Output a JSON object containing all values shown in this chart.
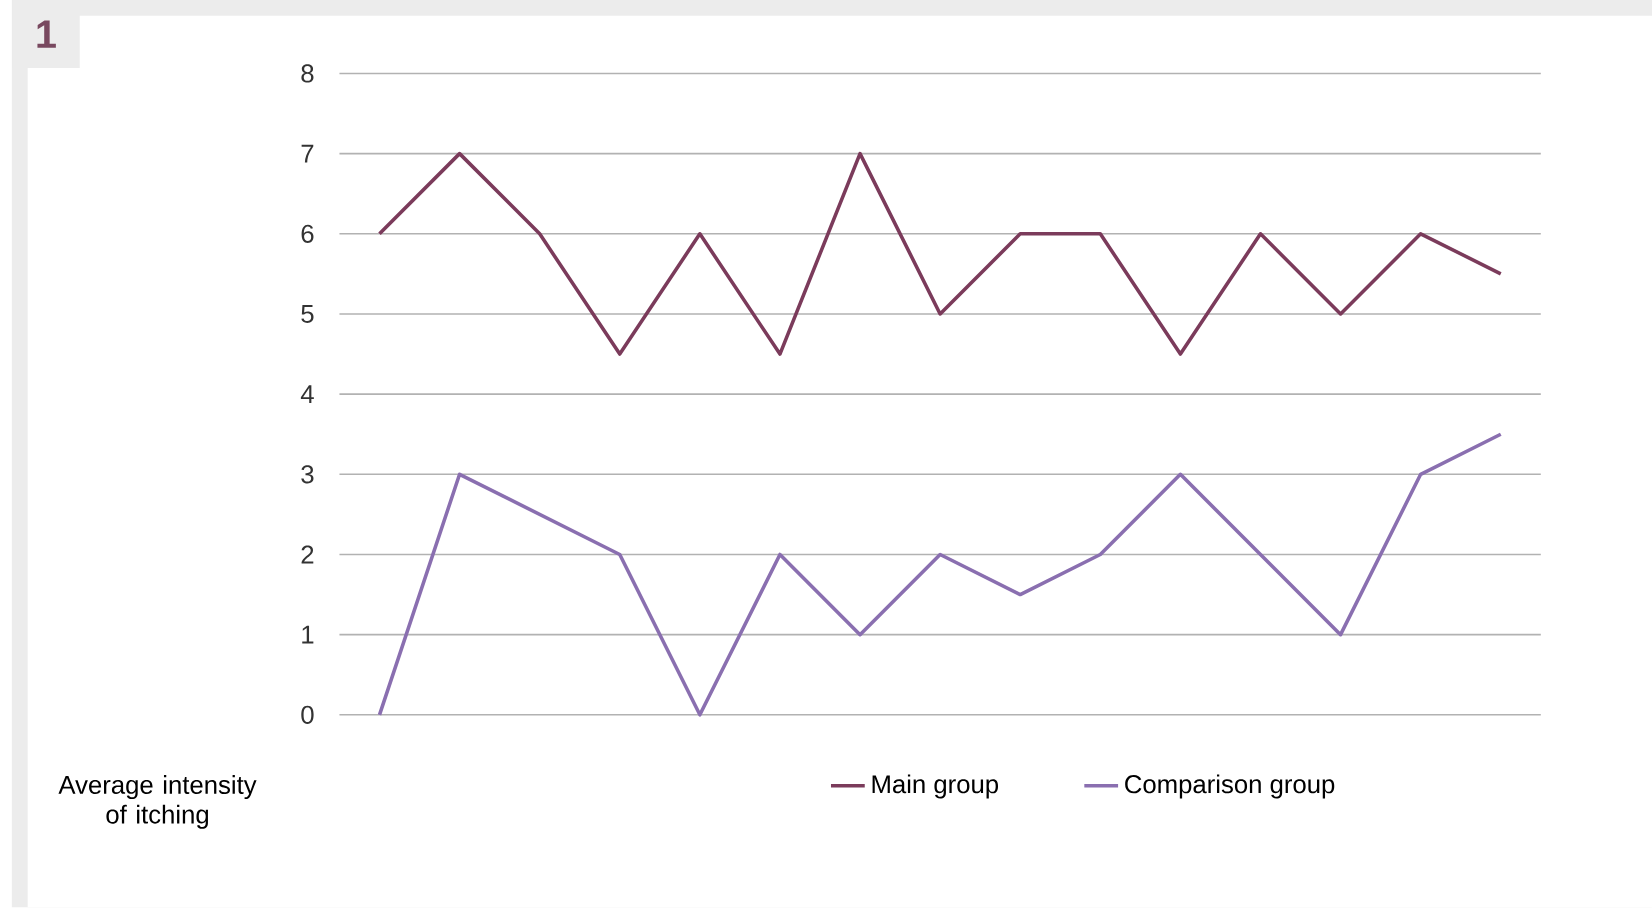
{
  "chart_data": {
    "type": "line",
    "categories": [
      null,
      null,
      null,
      null,
      null,
      null,
      null,
      null,
      null,
      null,
      null,
      null,
      null,
      null,
      null
    ],
    "series": [
      {
        "name": "Main group",
        "color": "#7b3b5b",
        "values": [
          6,
          7,
          6,
          4.5,
          6,
          4.5,
          7,
          5,
          6,
          6,
          4.5,
          6,
          5,
          6,
          5.5
        ]
      },
      {
        "name": "Comparison group",
        "color": "#8a6fb0",
        "values": [
          0,
          3,
          2.5,
          2,
          0,
          2,
          1,
          2,
          1.5,
          2,
          3,
          2,
          1,
          3,
          3.5
        ]
      }
    ],
    "xlabel": "Average intensity of itching",
    "ylim": [
      0,
      8
    ],
    "yticks": [
      0,
      1,
      2,
      3,
      4,
      5,
      6,
      7,
      8
    ],
    "grid": "y",
    "legend": "bottom",
    "annotations": [
      "1"
    ]
  }
}
